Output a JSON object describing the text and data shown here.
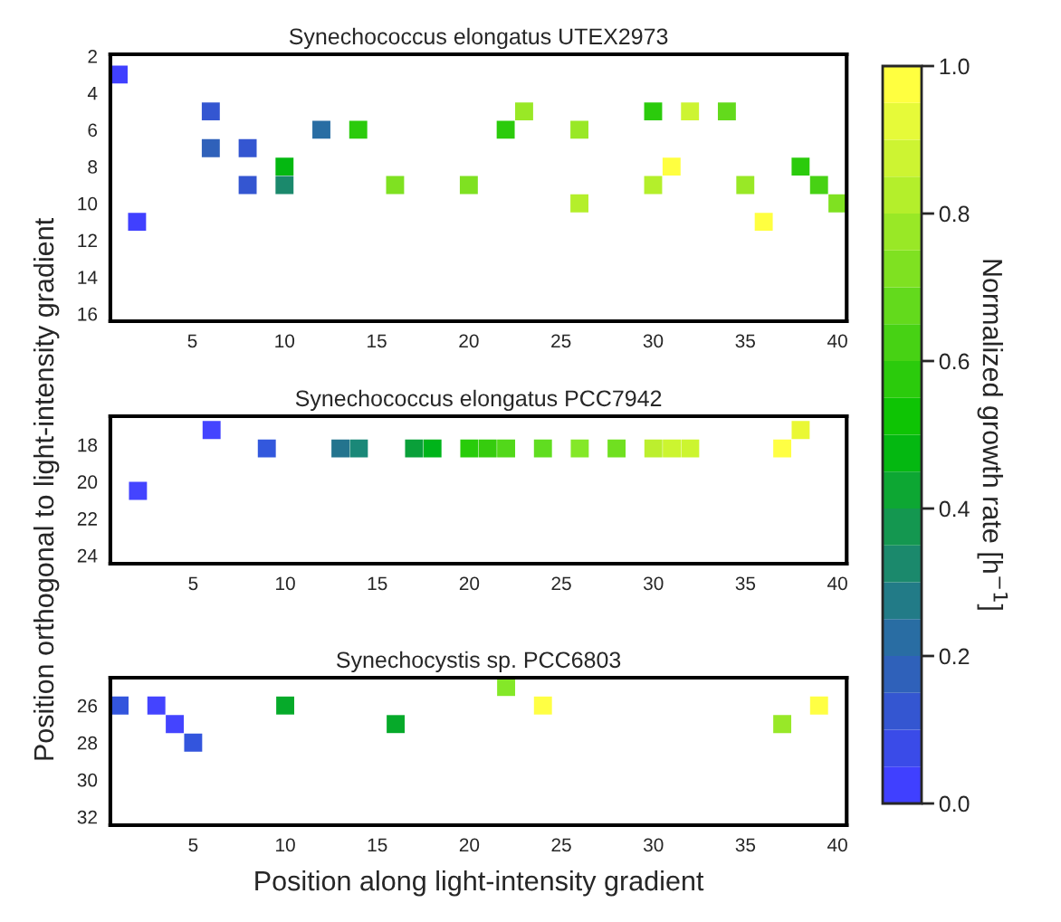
{
  "chart_data": [
    {
      "type": "scatter",
      "title": "Synechococcus elongatus UTEX2973",
      "marker": "square",
      "grid": false,
      "xlim": [
        0.55,
        40.5
      ],
      "xticks": [
        5,
        10,
        15,
        20,
        25,
        30,
        35,
        40
      ],
      "ylim": [
        16.4,
        1.9
      ],
      "yticks": [
        2,
        4,
        6,
        8,
        10,
        12,
        14,
        16
      ],
      "clim": [
        0,
        1
      ],
      "cticks": [
        {
          "value": 0,
          "label": "0.0"
        },
        0.2,
        0.4,
        0.6,
        0.8,
        {
          "value": 1,
          "label": "1.0"
        }
      ],
      "clabel": "Normalized growth rate [h$^{−1}$]",
      "x": [
        1,
        2,
        6,
        6,
        8,
        8,
        10,
        10,
        12,
        14,
        16,
        20,
        22,
        23,
        26,
        26,
        30,
        30,
        31,
        32,
        34,
        35,
        36,
        38,
        39,
        40
      ],
      "values": [
        3,
        11,
        5,
        7,
        7,
        9,
        8,
        9,
        6,
        6,
        9,
        9,
        6,
        5,
        6,
        10,
        5,
        9,
        8,
        5,
        5,
        9,
        11,
        8,
        9,
        10
      ],
      "cvalues": [
        0.02,
        0.02,
        0.1,
        0.15,
        0.1,
        0.1,
        0.45,
        0.3,
        0.2,
        0.55,
        0.72,
        0.72,
        0.55,
        0.75,
        0.75,
        0.8,
        0.55,
        0.8,
        1.0,
        0.85,
        0.68,
        0.75,
        0.95,
        0.55,
        0.6,
        0.7
      ]
    },
    {
      "type": "scatter",
      "title": "Synechococcus elongatus PCC7942",
      "ylabel": "Position orthogonal to light-intensity gradient",
      "marker": "square",
      "grid": false,
      "xlim": [
        0.5,
        40.5
      ],
      "xticks": [
        5,
        10,
        15,
        20,
        25,
        30,
        35,
        40
      ],
      "ylim": [
        24.45,
        16.45
      ],
      "yticks": [
        18,
        20,
        22,
        24
      ],
      "x": [
        2,
        6,
        9,
        13,
        14,
        17,
        18,
        20,
        21,
        22,
        24,
        26,
        28,
        30,
        31,
        32,
        37,
        38
      ],
      "values": [
        20.5,
        17.2,
        18.2,
        18.2,
        18.2,
        18.2,
        18.2,
        18.2,
        18.2,
        18.2,
        18.2,
        18.2,
        18.2,
        18.2,
        18.2,
        18.2,
        18.2,
        17.2
      ],
      "colors": [
        "#4444ff",
        "#4444ff",
        "#3358dd",
        "#24748e",
        "#1a8878",
        "#0aa03a",
        "#00b41a",
        "#28cc0a",
        "#36cc0e",
        "#52d81a",
        "#60dd20",
        "#84e828",
        "#70e020",
        "#bcef2e",
        "#ccf530",
        "#ccf530",
        "#ffff44",
        "#eaf835"
      ]
    },
    {
      "type": "scatter",
      "title": "Synechocystis sp. PCC6803",
      "xlabel": "Position along light-intensity gradient",
      "marker": "square",
      "grid": false,
      "xlim": [
        0.5,
        40.5
      ],
      "xticks": [
        5,
        10,
        15,
        20,
        25,
        30,
        35,
        40
      ],
      "ylim": [
        32.45,
        24.5
      ],
      "yticks": [
        26,
        28,
        30,
        32
      ],
      "x": [
        1,
        3,
        4,
        5,
        10,
        16,
        22,
        24,
        37,
        39
      ],
      "values": [
        26,
        26,
        27,
        28,
        26,
        27,
        25,
        26,
        27,
        26
      ],
      "colors": [
        "#3355dd",
        "#4444ff",
        "#4444ff",
        "#3355dd",
        "#06aa2a",
        "#06aa2a",
        "#84e828",
        "#ffff44",
        "#98e828",
        "#ffff44"
      ]
    }
  ]
}
